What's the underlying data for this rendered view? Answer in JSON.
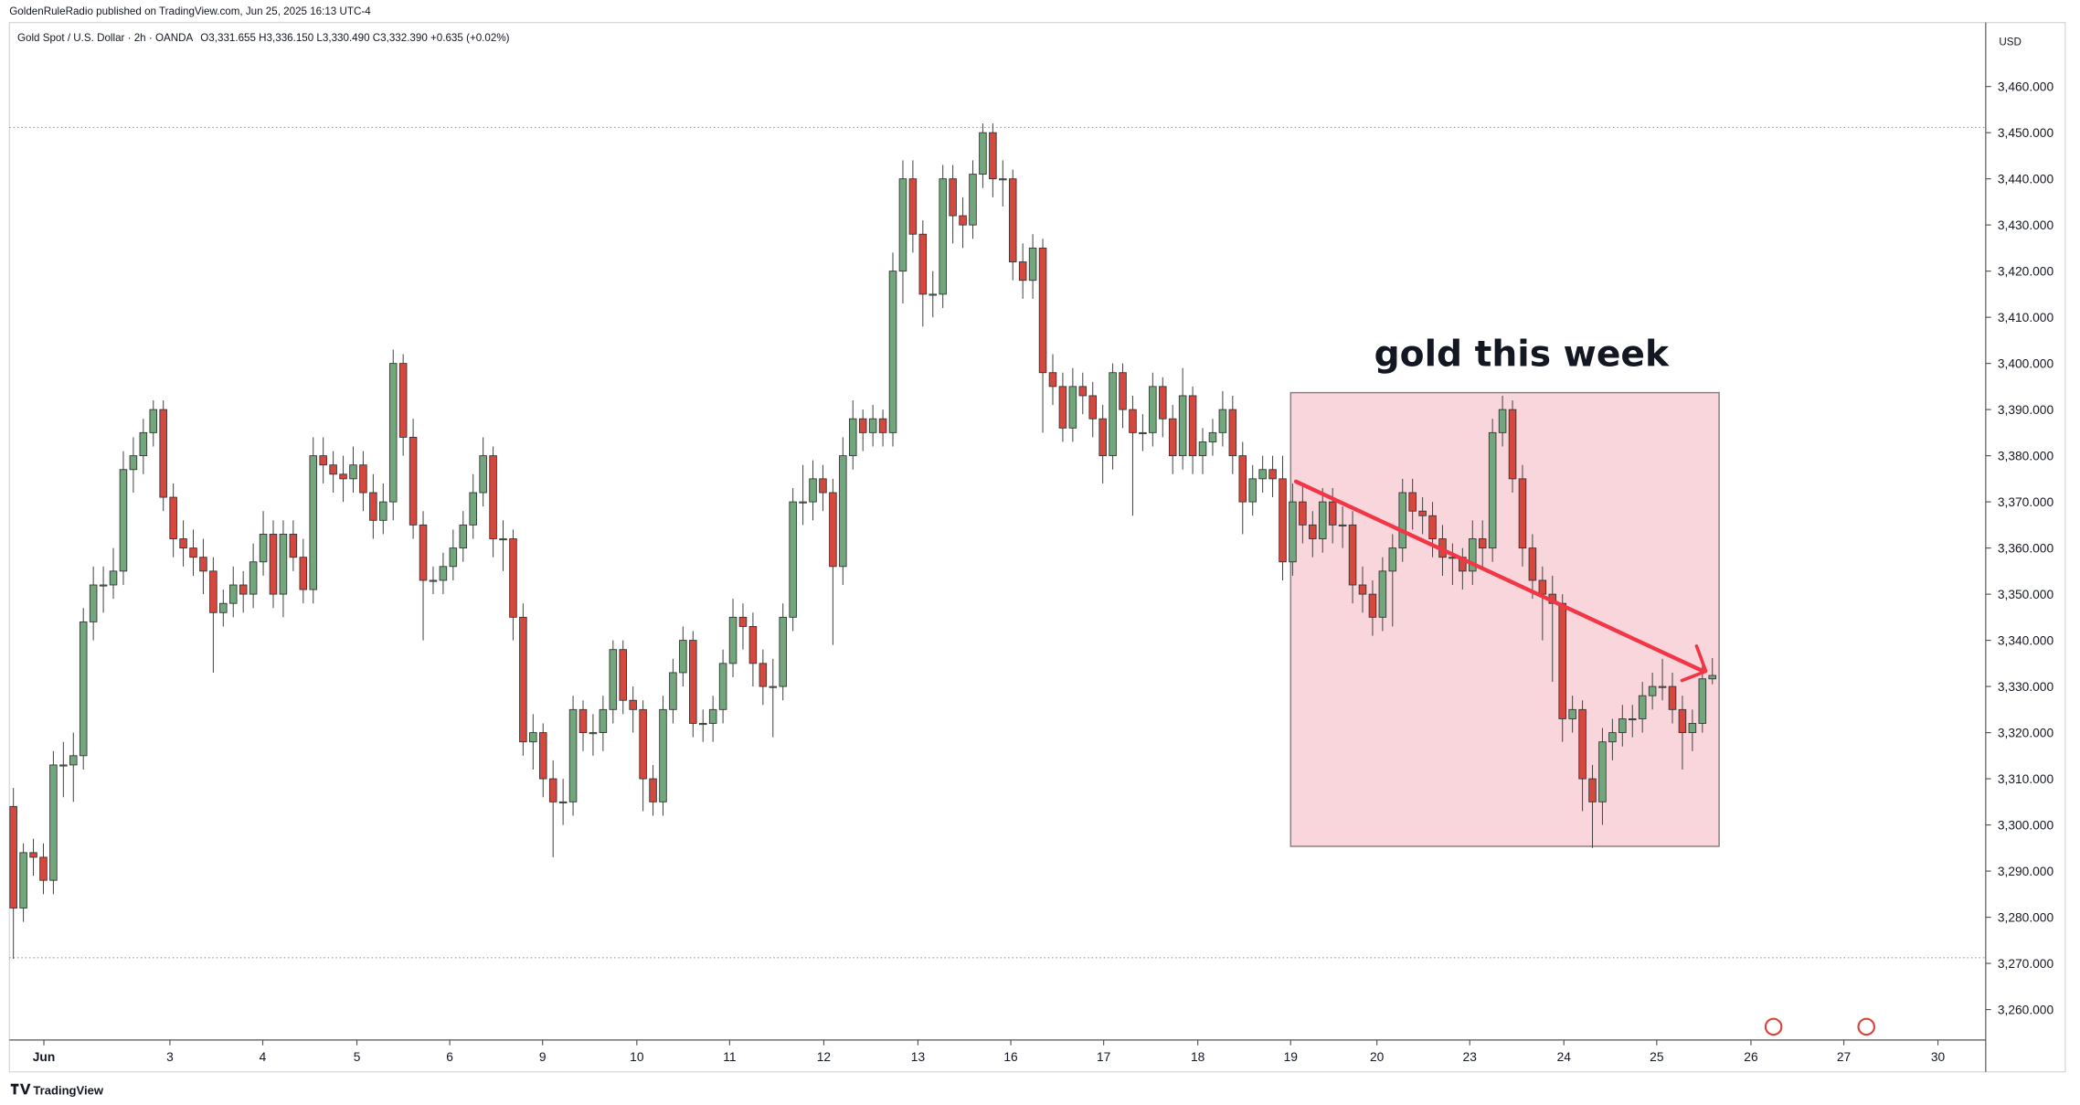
{
  "chart_data": {
    "type": "candlestick",
    "attribution": "GoldenRuleRadio published on TradingView.com, Jun 25, 2025 16:13 UTC-4",
    "title": "Gold Spot / U.S. Dollar · 2h · OANDA",
    "subtitle": "O3,331.655 H3,336.150 L3,330.490 C3,332.390 +0.635 (+0.02%)",
    "annotation": "gold this week",
    "y_axis_unit": "USD",
    "footer": "TradingView",
    "up_color": "#72a67c",
    "down_color": "#d6473d",
    "ylim": [
      3253.4,
      3473.6
    ],
    "yticks": [
      {
        "value": 3260,
        "label": "3,260.000"
      },
      {
        "value": 3270,
        "label": "3,270.000"
      },
      {
        "value": 3280,
        "label": "3,280.000"
      },
      {
        "value": 3290,
        "label": "3,290.000"
      },
      {
        "value": 3300,
        "label": "3,300.000"
      },
      {
        "value": 3310,
        "label": "3,310.000"
      },
      {
        "value": 3320,
        "label": "3,320.000"
      },
      {
        "value": 3330,
        "label": "3,330.000"
      },
      {
        "value": 3340,
        "label": "3,340.000"
      },
      {
        "value": 3350,
        "label": "3,350.000"
      },
      {
        "value": 3360,
        "label": "3,360.000"
      },
      {
        "value": 3370,
        "label": "3,370.000"
      },
      {
        "value": 3380,
        "label": "3,380.000"
      },
      {
        "value": 3390,
        "label": "3,390.000"
      },
      {
        "value": 3400,
        "label": "3,400.000"
      },
      {
        "value": 3410,
        "label": "3,410.000"
      },
      {
        "value": 3420,
        "label": "3,420.000"
      },
      {
        "value": 3430,
        "label": "3,430.000"
      },
      {
        "value": 3440,
        "label": "3,440.000"
      },
      {
        "value": 3450,
        "label": "3,450.000"
      },
      {
        "value": 3460,
        "label": "3,460.000"
      }
    ],
    "xlim": [
      -1.33,
      197.35
    ],
    "xticks": [
      {
        "value": 3.05,
        "label": "Jun"
      },
      {
        "value": 15.66,
        "label": "3"
      },
      {
        "value": 24.95,
        "label": "4"
      },
      {
        "value": 34.37,
        "label": "5"
      },
      {
        "value": 43.66,
        "label": "6"
      },
      {
        "value": 52.95,
        "label": "9"
      },
      {
        "value": 62.38,
        "label": "10"
      },
      {
        "value": 71.67,
        "label": "11"
      },
      {
        "value": 81.09,
        "label": "12"
      },
      {
        "value": 90.51,
        "label": "13"
      },
      {
        "value": 99.8,
        "label": "16"
      },
      {
        "value": 109.09,
        "label": "17"
      },
      {
        "value": 118.51,
        "label": "18"
      },
      {
        "value": 127.8,
        "label": "19"
      },
      {
        "value": 136.43,
        "label": "20"
      },
      {
        "value": 145.72,
        "label": "23"
      },
      {
        "value": 155.14,
        "label": "24"
      },
      {
        "value": 164.43,
        "label": "25"
      },
      {
        "value": 173.86,
        "label": "26"
      },
      {
        "value": 183.15,
        "label": "27"
      },
      {
        "value": 192.57,
        "label": "30"
      }
    ],
    "ohlc": [
      [
        3304,
        3308,
        3271,
        3282
      ],
      [
        3282,
        3296,
        3279,
        3294
      ],
      [
        3294,
        3297,
        3289,
        3293
      ],
      [
        3293,
        3296,
        3285,
        3288
      ],
      [
        3288,
        3316,
        3285,
        3313
      ],
      [
        3313,
        3318,
        3306,
        3313
      ],
      [
        3313,
        3320,
        3305,
        3315
      ],
      [
        3315,
        3347,
        3312,
        3344
      ],
      [
        3344,
        3356,
        3340,
        3352
      ],
      [
        3352,
        3356,
        3346,
        3352
      ],
      [
        3352,
        3360,
        3349,
        3355
      ],
      [
        3355,
        3381,
        3352,
        3377
      ],
      [
        3377,
        3384,
        3372,
        3380
      ],
      [
        3380,
        3388,
        3376,
        3385
      ],
      [
        3385,
        3392,
        3382,
        3390
      ],
      [
        3390,
        3392,
        3368,
        3371
      ],
      [
        3371,
        3374,
        3358,
        3362
      ],
      [
        3362,
        3366,
        3356,
        3360
      ],
      [
        3360,
        3364,
        3354,
        3358
      ],
      [
        3358,
        3362,
        3350,
        3355
      ],
      [
        3355,
        3358,
        3333,
        3346
      ],
      [
        3346,
        3351,
        3343,
        3348
      ],
      [
        3348,
        3356,
        3345,
        3352
      ],
      [
        3352,
        3355,
        3346,
        3350
      ],
      [
        3350,
        3361,
        3347,
        3357
      ],
      [
        3357,
        3368,
        3354,
        3363
      ],
      [
        3363,
        3366,
        3347,
        3350
      ],
      [
        3350,
        3366,
        3345,
        3363
      ],
      [
        3363,
        3366,
        3355,
        3358
      ],
      [
        3358,
        3362,
        3348,
        3351
      ],
      [
        3351,
        3384,
        3348,
        3380
      ],
      [
        3380,
        3384,
        3374,
        3378
      ],
      [
        3378,
        3381,
        3372,
        3376
      ],
      [
        3376,
        3380,
        3370,
        3375
      ],
      [
        3375,
        3382,
        3372,
        3378
      ],
      [
        3378,
        3381,
        3368,
        3372
      ],
      [
        3372,
        3376,
        3362,
        3366
      ],
      [
        3366,
        3374,
        3363,
        3370
      ],
      [
        3370,
        3403,
        3366,
        3400
      ],
      [
        3400,
        3402,
        3380,
        3384
      ],
      [
        3384,
        3388,
        3362,
        3365
      ],
      [
        3365,
        3368,
        3340,
        3353
      ],
      [
        3353,
        3356,
        3350,
        3353
      ],
      [
        3353,
        3359,
        3350,
        3356
      ],
      [
        3356,
        3364,
        3353,
        3360
      ],
      [
        3360,
        3368,
        3357,
        3365
      ],
      [
        3365,
        3376,
        3362,
        3372
      ],
      [
        3372,
        3384,
        3369,
        3380
      ],
      [
        3380,
        3382,
        3358,
        3362
      ],
      [
        3362,
        3366,
        3355,
        3362
      ],
      [
        3362,
        3364,
        3340,
        3345
      ],
      [
        3345,
        3348,
        3315,
        3318
      ],
      [
        3318,
        3324,
        3312,
        3320
      ],
      [
        3320,
        3322,
        3306,
        3310
      ],
      [
        3310,
        3314,
        3293,
        3305
      ],
      [
        3305,
        3310,
        3300,
        3305
      ],
      [
        3305,
        3328,
        3302,
        3325
      ],
      [
        3325,
        3327,
        3316,
        3320
      ],
      [
        3320,
        3324,
        3315,
        3320
      ],
      [
        3320,
        3328,
        3316,
        3325
      ],
      [
        3325,
        3340,
        3322,
        3338
      ],
      [
        3338,
        3340,
        3324,
        3327
      ],
      [
        3327,
        3330,
        3320,
        3325
      ],
      [
        3325,
        3327,
        3303,
        3310
      ],
      [
        3310,
        3313,
        3302,
        3305
      ],
      [
        3305,
        3328,
        3302,
        3325
      ],
      [
        3325,
        3336,
        3322,
        3333
      ],
      [
        3333,
        3343,
        3330,
        3340
      ],
      [
        3340,
        3342,
        3319,
        3322
      ],
      [
        3322,
        3325,
        3318,
        3322
      ],
      [
        3322,
        3328,
        3318,
        3325
      ],
      [
        3325,
        3338,
        3322,
        3335
      ],
      [
        3335,
        3349,
        3332,
        3345
      ],
      [
        3345,
        3348,
        3338,
        3343
      ],
      [
        3343,
        3346,
        3330,
        3335
      ],
      [
        3335,
        3338,
        3326,
        3330
      ],
      [
        3330,
        3336,
        3319,
        3330
      ],
      [
        3330,
        3348,
        3327,
        3345
      ],
      [
        3345,
        3373,
        3342,
        3370
      ],
      [
        3370,
        3378,
        3365,
        3370
      ],
      [
        3370,
        3379,
        3366,
        3375
      ],
      [
        3375,
        3378,
        3368,
        3372
      ],
      [
        3372,
        3375,
        3339,
        3356
      ],
      [
        3356,
        3384,
        3352,
        3380
      ],
      [
        3380,
        3392,
        3377,
        3388
      ],
      [
        3388,
        3390,
        3381,
        3385
      ],
      [
        3385,
        3391,
        3382,
        3388
      ],
      [
        3388,
        3390,
        3382,
        3385
      ],
      [
        3385,
        3424,
        3382,
        3420
      ],
      [
        3420,
        3444,
        3413,
        3440
      ],
      [
        3440,
        3444,
        3424,
        3428
      ],
      [
        3428,
        3431,
        3408,
        3415
      ],
      [
        3415,
        3420,
        3410,
        3415
      ],
      [
        3415,
        3443,
        3412,
        3440
      ],
      [
        3440,
        3443,
        3426,
        3432
      ],
      [
        3432,
        3436,
        3425,
        3430
      ],
      [
        3430,
        3444,
        3427,
        3441
      ],
      [
        3441,
        3452,
        3438,
        3450
      ],
      [
        3450,
        3452,
        3436,
        3440
      ],
      [
        3440,
        3444,
        3434,
        3440
      ],
      [
        3440,
        3442,
        3418,
        3422
      ],
      [
        3422,
        3426,
        3414,
        3418
      ],
      [
        3418,
        3428,
        3414,
        3425
      ],
      [
        3425,
        3427,
        3385,
        3398
      ],
      [
        3398,
        3402,
        3391,
        3395
      ],
      [
        3395,
        3398,
        3383,
        3386
      ],
      [
        3386,
        3399,
        3383,
        3395
      ],
      [
        3395,
        3398,
        3389,
        3393
      ],
      [
        3393,
        3396,
        3384,
        3388
      ],
      [
        3388,
        3391,
        3374,
        3380
      ],
      [
        3380,
        3400,
        3377,
        3398
      ],
      [
        3398,
        3400,
        3386,
        3390
      ],
      [
        3390,
        3393,
        3367,
        3385
      ],
      [
        3385,
        3389,
        3381,
        3385
      ],
      [
        3385,
        3398,
        3382,
        3395
      ],
      [
        3395,
        3397,
        3384,
        3388
      ],
      [
        3388,
        3391,
        3376,
        3380
      ],
      [
        3380,
        3399,
        3377,
        3393
      ],
      [
        3393,
        3395,
        3376,
        3380
      ],
      [
        3380,
        3386,
        3376,
        3383
      ],
      [
        3383,
        3388,
        3380,
        3385
      ],
      [
        3385,
        3394,
        3382,
        3390
      ],
      [
        3390,
        3393,
        3376,
        3380
      ],
      [
        3380,
        3383,
        3363,
        3370
      ],
      [
        3370,
        3378,
        3367,
        3375
      ],
      [
        3375,
        3380,
        3372,
        3377
      ],
      [
        3377,
        3380,
        3371,
        3375
      ],
      [
        3375,
        3380,
        3353,
        3357
      ],
      [
        3357,
        3374,
        3354,
        3370
      ],
      [
        3370,
        3374,
        3361,
        3365
      ],
      [
        3365,
        3368,
        3358,
        3362
      ],
      [
        3362,
        3373,
        3359,
        3370
      ],
      [
        3370,
        3373,
        3361,
        3365
      ],
      [
        3365,
        3369,
        3360,
        3365
      ],
      [
        3365,
        3368,
        3348,
        3352
      ],
      [
        3352,
        3356,
        3346,
        3350
      ],
      [
        3350,
        3353,
        3341,
        3345
      ],
      [
        3345,
        3358,
        3342,
        3355
      ],
      [
        3355,
        3363,
        3343,
        3360
      ],
      [
        3360,
        3375,
        3357,
        3372
      ],
      [
        3372,
        3375,
        3364,
        3368
      ],
      [
        3368,
        3371,
        3363,
        3367
      ],
      [
        3367,
        3370,
        3358,
        3362
      ],
      [
        3362,
        3365,
        3354,
        3358
      ],
      [
        3358,
        3361,
        3352,
        3358
      ],
      [
        3358,
        3360,
        3351,
        3355
      ],
      [
        3355,
        3366,
        3352,
        3362
      ],
      [
        3362,
        3366,
        3356,
        3360
      ],
      [
        3360,
        3388,
        3357,
        3385
      ],
      [
        3385,
        3393,
        3382,
        3390
      ],
      [
        3390,
        3392,
        3372,
        3375
      ],
      [
        3375,
        3378,
        3356,
        3360
      ],
      [
        3360,
        3363,
        3349,
        3353
      ],
      [
        3353,
        3356,
        3340,
        3350
      ],
      [
        3350,
        3354,
        3331,
        3348
      ],
      [
        3348,
        3350,
        3318,
        3323
      ],
      [
        3323,
        3328,
        3320,
        3325
      ],
      [
        3325,
        3327,
        3303,
        3310
      ],
      [
        3310,
        3313,
        3295,
        3305
      ],
      [
        3305,
        3321,
        3300,
        3318
      ],
      [
        3318,
        3323,
        3314,
        3320
      ],
      [
        3320,
        3326,
        3317,
        3323
      ],
      [
        3323,
        3326,
        3319,
        3323
      ],
      [
        3323,
        3331,
        3320,
        3328
      ],
      [
        3328,
        3333,
        3325,
        3330
      ],
      [
        3330,
        3336,
        3327,
        3330
      ],
      [
        3330,
        3333,
        3322,
        3325
      ],
      [
        3325,
        3328,
        3312,
        3320
      ],
      [
        3320,
        3325,
        3316,
        3322
      ],
      [
        3322,
        3335,
        3320,
        3331.655
      ],
      [
        3331.655,
        3336.15,
        3330.49,
        3332.39
      ]
    ]
  }
}
